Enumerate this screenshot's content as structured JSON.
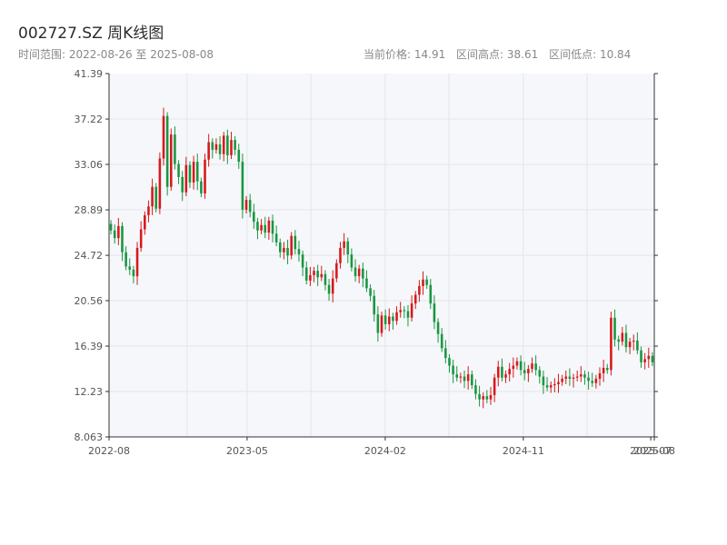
{
  "header": {
    "title": "002727.SZ 周K线图",
    "range_label": "时间范围: 2022-08-26 至 2025-08-08",
    "current_price": "当前价格: 14.91",
    "range_high": "区间高点: 38.61",
    "range_low": "区间低点: 10.84"
  },
  "colors": {
    "up": "#d7191c",
    "down": "#1a9641",
    "plot_bg": "#f5f7fa",
    "grid": "#e3e6ea",
    "axis": "#333333"
  },
  "chart_data": {
    "type": "candlestick",
    "title": "002727.SZ 周K线图",
    "xlabel": "",
    "ylabel": "",
    "ylim": [
      8.063,
      41.39
    ],
    "y_ticks": [
      "8.063",
      "12.23",
      "16.39",
      "20.56",
      "24.72",
      "28.89",
      "33.06",
      "37.22",
      "41.39"
    ],
    "x_ticks": [
      "2022-08",
      "2023-05",
      "2024-02",
      "2024-11",
      "2025-07",
      "2025-08"
    ],
    "x_range": [
      "2022-08-26",
      "2025-08-08"
    ],
    "grid": true,
    "weekly_close": [
      27.0,
      26.3,
      27.4,
      25.0,
      23.7,
      23.4,
      22.8,
      25.4,
      27.1,
      28.4,
      29.2,
      31.0,
      29.0,
      33.6,
      37.5,
      31.0,
      35.8,
      33.1,
      31.9,
      30.5,
      33.0,
      31.4,
      33.3,
      31.5,
      30.4,
      33.5,
      35.1,
      34.4,
      34.9,
      34.0,
      35.7,
      33.9,
      35.3,
      34.4,
      33.3,
      28.9,
      29.8,
      28.7,
      27.8,
      27.0,
      27.5,
      26.8,
      27.9,
      26.7,
      25.9,
      25.0,
      25.4,
      24.7,
      26.5,
      25.3,
      24.8,
      23.6,
      22.4,
      22.9,
      23.3,
      22.7,
      23.0,
      22.0,
      21.2,
      22.6,
      24.0,
      25.4,
      26.0,
      24.8,
      23.6,
      22.8,
      23.5,
      22.6,
      21.7,
      21.0,
      19.3,
      17.6,
      19.2,
      18.4,
      19.1,
      18.7,
      19.5,
      19.7,
      19.6,
      19.0,
      20.3,
      21.1,
      21.9,
      22.5,
      22.0,
      20.3,
      18.6,
      17.5,
      16.2,
      15.3,
      14.6,
      13.8,
      13.5,
      13.6,
      13.2,
      13.8,
      12.8,
      12.0,
      11.5,
      11.8,
      11.5,
      11.9,
      13.5,
      14.5,
      13.5,
      13.8,
      14.3,
      14.6,
      15.0,
      14.2,
      13.9,
      14.3,
      14.8,
      14.2,
      13.6,
      12.8,
      12.6,
      12.8,
      12.9,
      13.1,
      13.4,
      13.6,
      13.4,
      13.5,
      13.6,
      13.8,
      13.5,
      13.2,
      13.0,
      13.4,
      13.9,
      14.4,
      14.2,
      19.0,
      17.0,
      16.8,
      17.6,
      16.3,
      16.8,
      16.9,
      16.0,
      14.9,
      15.2,
      15.5,
      14.91
    ]
  }
}
